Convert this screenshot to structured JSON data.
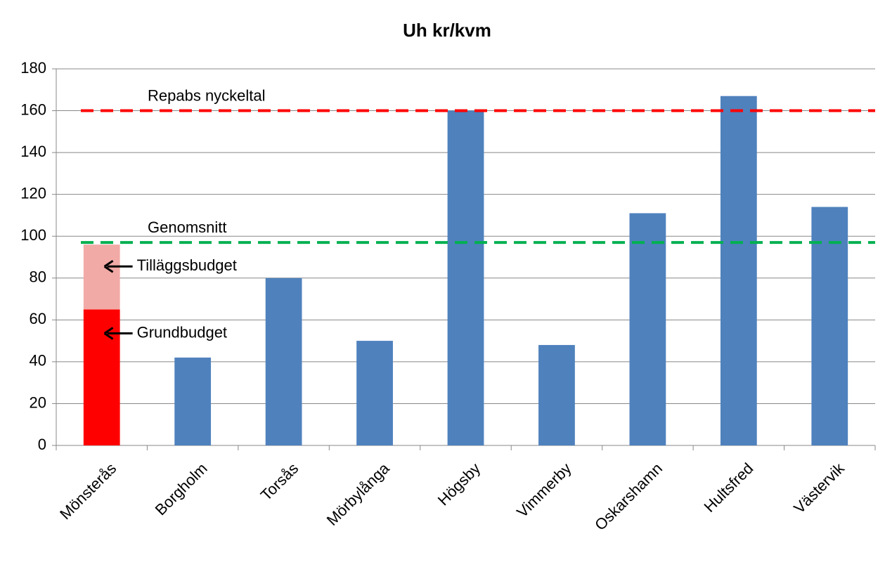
{
  "chart_data": {
    "type": "bar",
    "title": "Uh kr/kvm",
    "categories": [
      "Mönsterås",
      "Borgholm",
      "Torsås",
      "Mörbylånga",
      "Högsby",
      "Vimmerby",
      "Oskarshamn",
      "Hultsfred",
      "Västervik"
    ],
    "series": [
      {
        "name": "Grundbudget",
        "color": "#4f81bd",
        "colors": [
          "#ff0000",
          "#4f81bd",
          "#4f81bd",
          "#4f81bd",
          "#4f81bd",
          "#4f81bd",
          "#4f81bd",
          "#4f81bd",
          "#4f81bd"
        ],
        "values": [
          65,
          42,
          80,
          50,
          160,
          48,
          111,
          167,
          114
        ]
      },
      {
        "name": "Tilläggsbudget",
        "color": "#f2aaa6",
        "values": [
          31,
          null,
          null,
          null,
          null,
          null,
          null,
          null,
          null
        ]
      }
    ],
    "reference_lines": [
      {
        "label": "Repabs nyckeltal",
        "value": 160,
        "color": "#ff0000"
      },
      {
        "label": "Genomsnitt",
        "value": 97,
        "color": "#00b050"
      }
    ],
    "ylim": [
      0,
      180
    ],
    "yticks": [
      0,
      20,
      40,
      60,
      80,
      100,
      120,
      140,
      160,
      180
    ],
    "grid": true
  }
}
